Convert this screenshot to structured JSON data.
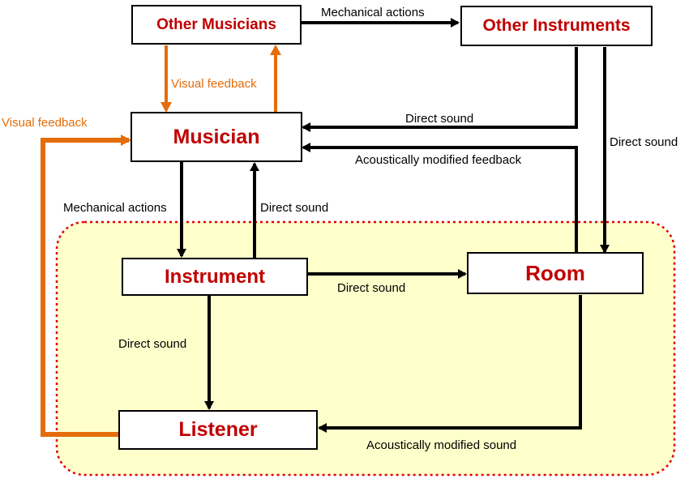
{
  "colors": {
    "node_text": "#c00000",
    "visual_feedback": "#e46c0a",
    "region_fill": "#ffffcc",
    "region_border": "#e00000",
    "arrow": "#000000"
  },
  "nodes": {
    "other_musicians": "Other Musicians",
    "other_instruments": "Other Instruments",
    "musician": "Musician",
    "instrument": "Instrument",
    "room": "Room",
    "listener": "Listener"
  },
  "edges": {
    "om_to_oi": "Mechanical actions",
    "om_musician_visual": "Visual feedback",
    "oi_to_musician_direct": "Direct sound",
    "oi_to_room_direct": "Direct sound",
    "room_to_musician_modified": "Acoustically modified feedback",
    "musician_to_instrument": "Mechanical actions",
    "instrument_to_musician": "Direct sound",
    "instrument_to_room": "Direct sound",
    "instrument_to_listener": "Direct sound",
    "room_to_listener": "Acoustically modified sound",
    "listener_to_musician_visual": "Visual feedback"
  }
}
